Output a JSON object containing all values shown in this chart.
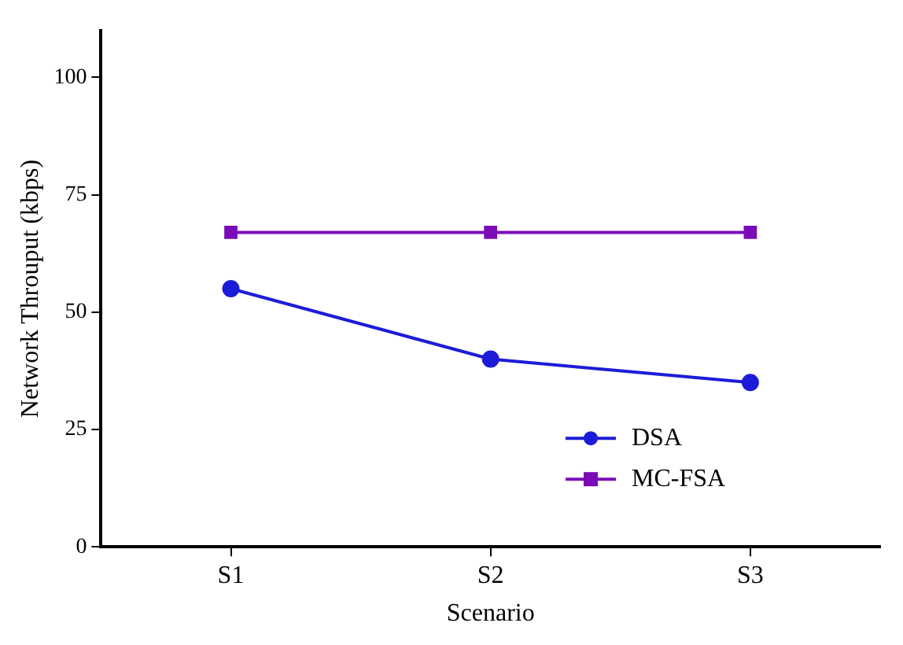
{
  "chart_data": {
    "type": "line",
    "xlabel": "Scenario",
    "ylabel": "Network Throuput (kbps)",
    "categories": [
      "S1",
      "S2",
      "S3"
    ],
    "series": [
      {
        "name": "DSA",
        "color": "#1c1cd8",
        "values": [
          55,
          40,
          35
        ],
        "marker": "circle"
      },
      {
        "name": "MC-FSA",
        "color": "#7a0cb8",
        "values": [
          67,
          67,
          67
        ],
        "marker": "square"
      }
    ],
    "ylim": [
      0,
      110
    ],
    "yticks": [
      0,
      25,
      50,
      75,
      100
    ],
    "grid": false,
    "legend": "bottom right",
    "line_style": "solid"
  }
}
